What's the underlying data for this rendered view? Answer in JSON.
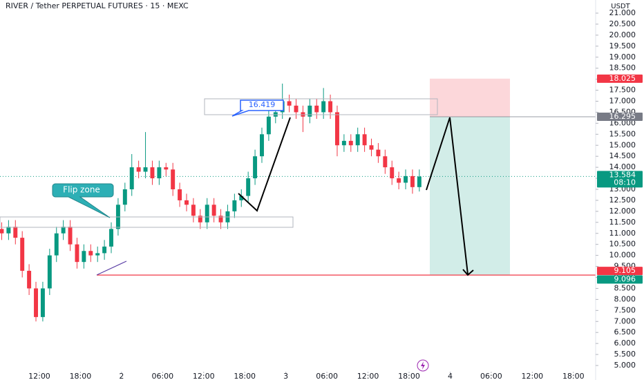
{
  "title": "RIVER / Tether PERPETUAL FUTURES · 15 · MEXC",
  "currency": "USDT",
  "annotations": {
    "flip_zone": "Flip zone",
    "level_box": "16.419",
    "countdown": "08:10"
  },
  "chart_data": {
    "type": "candlestick",
    "x": [
      6.5,
      7.5,
      8.5,
      9.5,
      10.5,
      11.5,
      12.5,
      13.5,
      14.5,
      15.5,
      16.5,
      17.5,
      18.5,
      19.5,
      20.5,
      21.5,
      22.5,
      23.5,
      24.5,
      25.5,
      26.5,
      27.5,
      28.5,
      29.5,
      30.5,
      31.5,
      32.5,
      33.5,
      34.5,
      35.5,
      36.5,
      37.5,
      38.5,
      39.5,
      40.5,
      41.5,
      42.5,
      43.5,
      44.5,
      45.5,
      46.5,
      47.5,
      48.5,
      49.5,
      50.5,
      51.5,
      52.5,
      53.5,
      54.5,
      55.5,
      56.5,
      57.5,
      58.5,
      59.5,
      60.5,
      61.5,
      62.5,
      63.5,
      64.5,
      65.5,
      66.5,
      67.5
    ],
    "open": [
      11.2,
      11.0,
      11.3,
      10.8,
      9.3,
      8.5,
      7.2,
      8.5,
      10.0,
      11.0,
      11.3,
      10.5,
      9.7,
      10.2,
      10.0,
      10.1,
      10.4,
      11.2,
      12.3,
      13.0,
      14.0,
      13.8,
      14.0,
      13.5,
      14.0,
      13.9,
      13.0,
      12.5,
      12.3,
      11.8,
      11.5,
      12.3,
      11.8,
      11.5,
      12.0,
      12.5,
      12.7,
      13.5,
      14.5,
      15.5,
      16.3,
      16.5,
      17.0,
      16.8,
      16.5,
      16.3,
      16.8,
      16.5,
      17.0,
      16.5,
      15.0,
      15.2,
      15.0,
      15.5,
      15.0,
      14.8,
      14.5,
      14.0,
      13.5,
      13.3,
      13.6,
      13.1
    ],
    "high": [
      11.5,
      11.6,
      11.6,
      11.1,
      9.6,
      8.8,
      8.8,
      10.3,
      11.3,
      11.6,
      11.6,
      10.8,
      10.5,
      10.5,
      10.4,
      10.7,
      11.5,
      12.6,
      13.3,
      14.6,
      14.3,
      15.6,
      14.3,
      14.3,
      14.2,
      14.2,
      13.3,
      12.8,
      12.6,
      12.1,
      12.6,
      12.6,
      12.1,
      12.3,
      12.8,
      13.0,
      13.8,
      14.8,
      15.8,
      16.6,
      16.8,
      17.8,
      17.3,
      17.1,
      16.8,
      17.1,
      17.1,
      17.6,
      17.3,
      16.8,
      15.5,
      15.5,
      15.8,
      15.8,
      15.3,
      15.1,
      14.8,
      14.3,
      13.8,
      13.9,
      13.9,
      13.9
    ],
    "low": [
      10.7,
      10.7,
      10.5,
      9.0,
      8.2,
      7.0,
      7.0,
      8.2,
      9.7,
      10.7,
      10.2,
      9.4,
      9.4,
      9.7,
      9.7,
      9.8,
      10.1,
      10.9,
      12.0,
      12.7,
      13.5,
      13.5,
      13.2,
      13.2,
      13.6,
      12.7,
      12.2,
      12.0,
      11.5,
      11.2,
      11.2,
      11.5,
      11.2,
      11.2,
      11.7,
      12.2,
      12.4,
      13.2,
      14.2,
      15.2,
      16.0,
      16.2,
      16.5,
      16.2,
      15.6,
      16.0,
      16.2,
      16.2,
      16.2,
      14.5,
      14.7,
      14.7,
      14.7,
      14.7,
      14.5,
      14.2,
      13.7,
      13.2,
      13.0,
      13.0,
      12.8,
      12.9
    ],
    "close": [
      11.0,
      11.3,
      10.8,
      9.3,
      8.5,
      7.2,
      8.5,
      10.0,
      11.0,
      11.3,
      10.5,
      9.7,
      10.2,
      10.0,
      10.1,
      10.4,
      11.2,
      12.3,
      13.0,
      14.0,
      13.8,
      14.0,
      13.5,
      14.0,
      13.9,
      13.0,
      12.5,
      12.3,
      11.8,
      11.5,
      12.3,
      11.8,
      11.5,
      12.0,
      12.5,
      12.7,
      13.5,
      14.5,
      15.5,
      16.3,
      16.5,
      17.0,
      16.8,
      16.5,
      16.3,
      16.8,
      16.5,
      17.0,
      16.5,
      15.0,
      15.2,
      15.0,
      15.5,
      15.0,
      14.8,
      14.5,
      14.0,
      13.5,
      13.3,
      13.6,
      13.1,
      13.58
    ],
    "up_color": "#089981",
    "down_color": "#f23645",
    "xlim": [
      6.25,
      93.25
    ],
    "xticks": [
      {
        "value": 12,
        "label": "12:00"
      },
      {
        "value": 18,
        "label": "18:00"
      },
      {
        "value": 24,
        "label": "2"
      },
      {
        "value": 30,
        "label": "06:00"
      },
      {
        "value": 36,
        "label": "12:00"
      },
      {
        "value": 42,
        "label": "18:00"
      },
      {
        "value": 48,
        "label": "3"
      },
      {
        "value": 54,
        "label": "06:00"
      },
      {
        "value": 60,
        "label": "12:00"
      },
      {
        "value": 66,
        "label": "18:00"
      },
      {
        "value": 72,
        "label": "4"
      },
      {
        "value": 78,
        "label": "06:00"
      },
      {
        "value": 84,
        "label": "12:00"
      },
      {
        "value": 90,
        "label": "18:00"
      }
    ],
    "ylim": [
      5,
      21
    ],
    "yticks": [
      {
        "value": 21,
        "label": "21.000"
      },
      {
        "value": 20.5,
        "label": "20.500"
      },
      {
        "value": 20,
        "label": "20.000"
      },
      {
        "value": 19.5,
        "label": "19.500"
      },
      {
        "value": 19,
        "label": "19.000"
      },
      {
        "value": 18.5,
        "label": "18.500"
      },
      {
        "value": 18,
        "label": "18.000"
      },
      {
        "value": 17.5,
        "label": "17.500"
      },
      {
        "value": 17,
        "label": "17.000"
      },
      {
        "value": 16.5,
        "label": "16.500"
      },
      {
        "value": 16,
        "label": "16.000"
      },
      {
        "value": 15.5,
        "label": "15.500"
      },
      {
        "value": 15,
        "label": "15.000"
      },
      {
        "value": 14.5,
        "label": "14.500"
      },
      {
        "value": 14,
        "label": "14.000"
      },
      {
        "value": 13.5,
        "label": "13.500"
      },
      {
        "value": 13,
        "label": "13.000"
      },
      {
        "value": 12.5,
        "label": "12.500"
      },
      {
        "value": 12,
        "label": "12.000"
      },
      {
        "value": 11.5,
        "label": "11.500"
      },
      {
        "value": 11,
        "label": "11.000"
      },
      {
        "value": 10.5,
        "label": "10.500"
      },
      {
        "value": 10,
        "label": "10.000"
      },
      {
        "value": 9.5,
        "label": "9.500"
      },
      {
        "value": 9,
        "label": "9.000"
      },
      {
        "value": 8.5,
        "label": "8.500"
      },
      {
        "value": 8,
        "label": "8.000"
      },
      {
        "value": 7.5,
        "label": "7.500"
      },
      {
        "value": 7,
        "label": "7.000"
      },
      {
        "value": 6.5,
        "label": "6.500"
      },
      {
        "value": 6,
        "label": "6.000"
      },
      {
        "value": 5.5,
        "label": "5.500"
      },
      {
        "value": 5,
        "label": "5.000"
      }
    ],
    "price_tags": [
      {
        "value": 18.025,
        "label": "18.025",
        "color": "#f23645"
      },
      {
        "value": 16.295,
        "label": "16.295",
        "color": "#787b86"
      },
      {
        "value": 13.584,
        "label": "13.584",
        "color": "#089981"
      },
      {
        "value": 9.105,
        "label": "9.105",
        "color": "#f23645"
      },
      {
        "value": 9.096,
        "label": "9.096",
        "color": "#089981"
      }
    ]
  }
}
